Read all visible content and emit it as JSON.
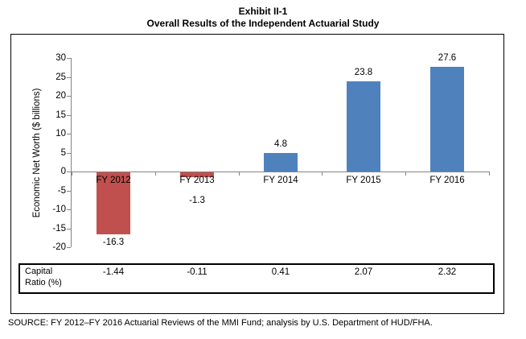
{
  "title": {
    "line1": "Exhibit II-1",
    "line2": "Overall Results of the Independent Actuarial Study"
  },
  "source": "SOURCE: FY 2012–FY 2016 Actuarial Reviews of the MMI Fund; analysis by U.S. Department of HUD/FHA.",
  "chart_data": {
    "type": "bar",
    "title": "Overall Results of the Independent Actuarial Study",
    "subtitle": "Exhibit II-1",
    "categories": [
      "FY 2012",
      "FY 2013",
      "FY 2014",
      "FY 2015",
      "FY 2016"
    ],
    "values": [
      -16.3,
      -1.3,
      4.8,
      23.8,
      27.6
    ],
    "value_labels": [
      "-16.3",
      "-1.3",
      "4.8",
      "23.8",
      "27.6"
    ],
    "bar_colors": [
      "#C0504D",
      "#C0504D",
      "#4F81BD",
      "#4F81BD",
      "#4F81BD"
    ],
    "xlabel": "",
    "ylabel": "Economic Net Worth ($ billions)",
    "ylim": [
      -20,
      30
    ],
    "yticks": [
      30,
      25,
      20,
      15,
      10,
      5,
      0,
      -5,
      -10,
      -15,
      -20
    ],
    "grid": false,
    "legend_position": "none",
    "axis_color": "#848484",
    "capital_ratio_row": {
      "label_lines": [
        "Capital",
        "Ratio (%)"
      ],
      "values": [
        "-1.44",
        "-0.11",
        "0.41",
        "2.07",
        "2.32"
      ]
    }
  }
}
